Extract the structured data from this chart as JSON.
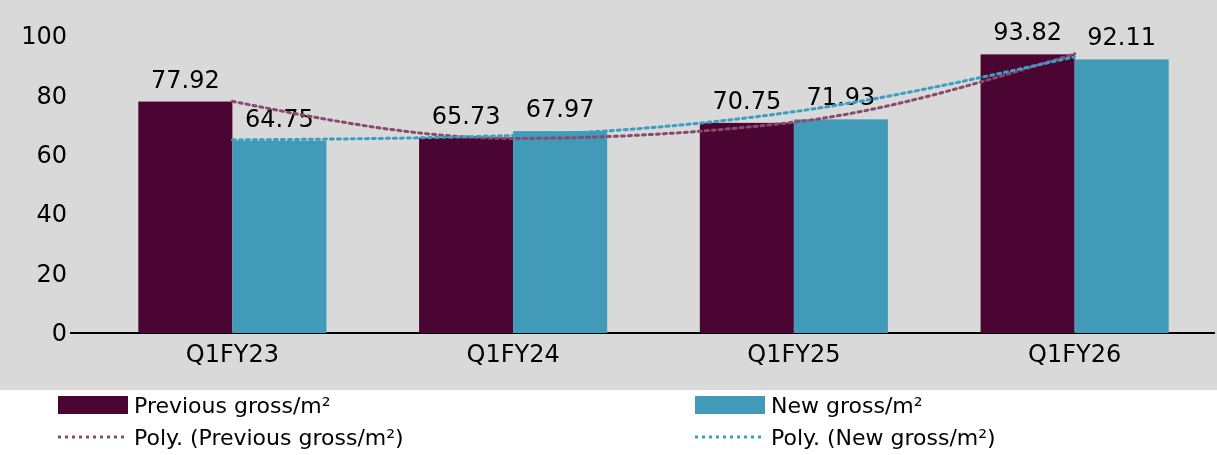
{
  "chart_data": {
    "type": "bar",
    "categories": [
      "Q1FY23",
      "Q1FY24",
      "Q1FY25",
      "Q1FY26"
    ],
    "series": [
      {
        "name": "Previous gross/m²",
        "color": "#4b0533",
        "values": [
          77.92,
          65.73,
          70.75,
          93.82
        ],
        "value_labels": [
          "77.92",
          "65.73",
          "70.75",
          "93.82"
        ]
      },
      {
        "name": "New gross/m²",
        "color": "#429ab9",
        "values": [
          64.75,
          67.97,
          71.93,
          92.11
        ],
        "value_labels": [
          "64.75",
          "67.97",
          "71.93",
          "92.11"
        ]
      },
      {
        "name": "Poly. (Previous gross/m²)",
        "type": "line",
        "line_style": "dotted",
        "color": "#8a4a6e",
        "values": [
          78,
          65.5,
          71,
          94
        ]
      },
      {
        "name": "Poly. (New gross/m²)",
        "type": "line",
        "line_style": "dotted",
        "color": "#3a9fc0",
        "values": [
          65,
          66.5,
          74.5,
          93
        ]
      }
    ],
    "ylim": [
      0,
      100
    ],
    "yticks": [
      0,
      20,
      40,
      60,
      80,
      100
    ],
    "grid": false,
    "legend": "bottom"
  }
}
